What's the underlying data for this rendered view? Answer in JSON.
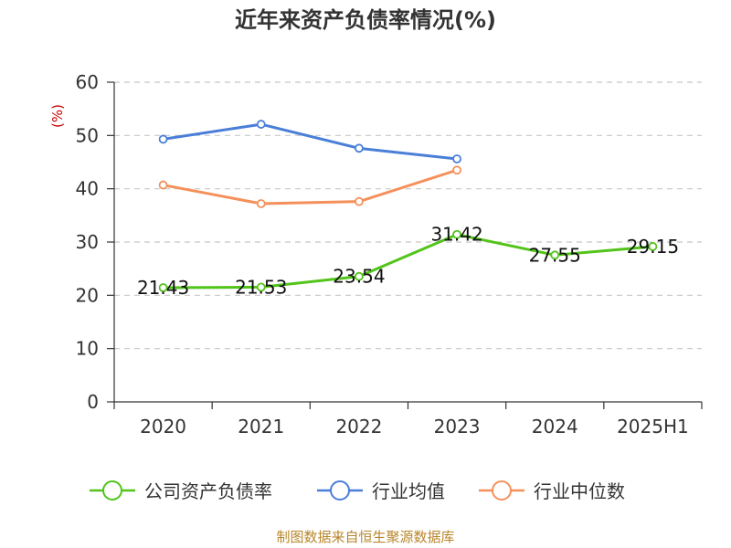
{
  "title": "近年来资产负债率情况(%)",
  "source": "制图数据来自恒生聚源数据库",
  "chart_data": {
    "type": "line",
    "title": "近年来资产负债率情况(%)",
    "ylabel": "(%)",
    "xlabel": "",
    "ylim": [
      0,
      60
    ],
    "yticks": [
      0,
      10,
      20,
      30,
      40,
      50,
      60
    ],
    "categories": [
      "2020",
      "2021",
      "2022",
      "2023",
      "2024",
      "2025H1"
    ],
    "grid": true,
    "legend_position": "bottom",
    "series": [
      {
        "name": "公司资产负债率",
        "color": "#52c41a",
        "values": [
          21.43,
          21.53,
          23.54,
          31.42,
          27.55,
          29.15
        ],
        "labels": [
          "21.43",
          "21.53",
          "23.54",
          "31.42",
          "27.55",
          "29.15"
        ],
        "show_labels": true
      },
      {
        "name": "行业均值",
        "color": "#4a7fd8",
        "values": [
          49.3,
          52.1,
          47.6,
          45.6,
          null,
          null
        ],
        "show_labels": false
      },
      {
        "name": "行业中位数",
        "color": "#f5905a",
        "values": [
          40.7,
          37.2,
          37.6,
          43.5,
          null,
          null
        ],
        "show_labels": false
      }
    ]
  }
}
